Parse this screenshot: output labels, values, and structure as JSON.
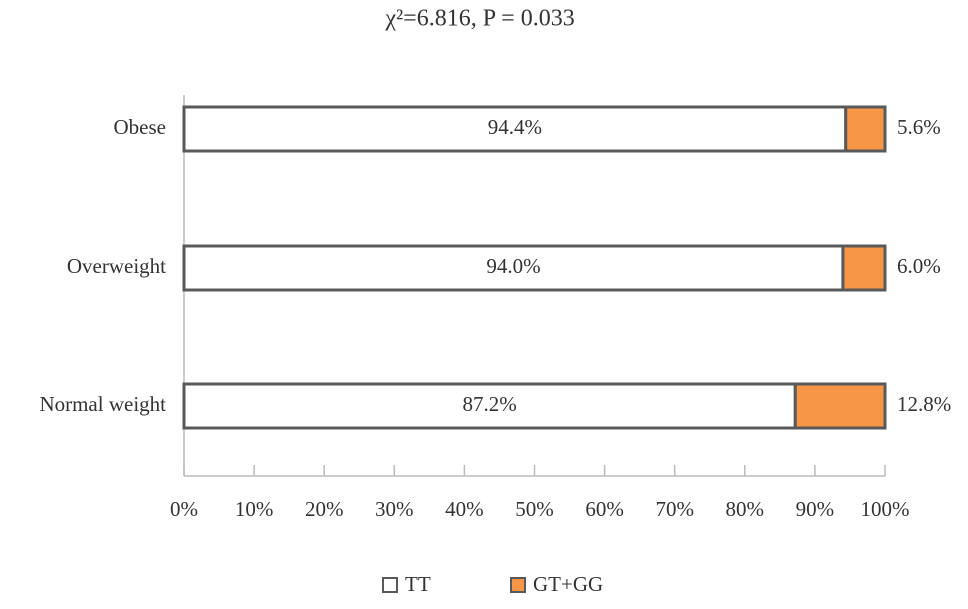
{
  "chart_data": {
    "type": "stacked-barh",
    "title": "χ²=6.816, P = 0.033",
    "categories": [
      "Obese",
      "Overweight",
      "Normal weight"
    ],
    "series": [
      {
        "name": "TT",
        "color": "#ffffff",
        "values": [
          94.4,
          94.0,
          87.2
        ],
        "value_labels": [
          "94.4%",
          "94.0%",
          "87.2%"
        ]
      },
      {
        "name": "GT+GG",
        "color": "#f79646",
        "values": [
          5.6,
          6.0,
          12.8
        ],
        "value_labels": [
          "5.6%",
          "6.0%",
          "12.8%"
        ]
      }
    ],
    "xlim": [
      0,
      100
    ],
    "xticks": [
      {
        "value": 0,
        "label": "0%"
      },
      {
        "value": 10,
        "label": "10%"
      },
      {
        "value": 20,
        "label": "20%"
      },
      {
        "value": 30,
        "label": "30%"
      },
      {
        "value": 40,
        "label": "40%"
      },
      {
        "value": 50,
        "label": "50%"
      },
      {
        "value": 60,
        "label": "60%"
      },
      {
        "value": 70,
        "label": "70%"
      },
      {
        "value": 80,
        "label": "80%"
      },
      {
        "value": 90,
        "label": "90%"
      },
      {
        "value": 100,
        "label": "100%"
      }
    ],
    "legend": "bottom"
  }
}
